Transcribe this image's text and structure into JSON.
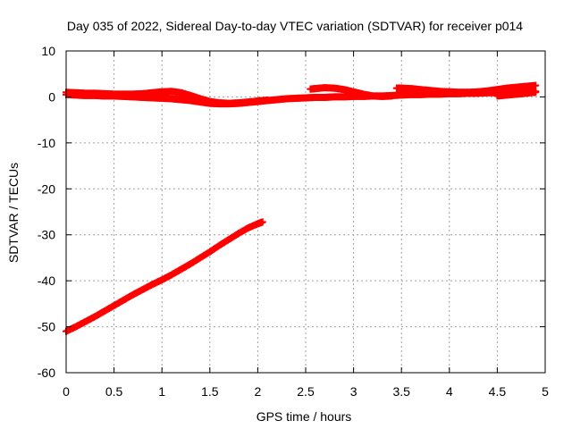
{
  "chart_data": {
    "type": "scatter",
    "title": "Day 035 of 2022, Sidereal Day-to-day VTEC variation (SDTVAR) for receiver p014",
    "xlabel": "GPS time / hours",
    "ylabel": "SDTVAR / TECUs",
    "xlim": [
      0,
      5
    ],
    "ylim": [
      -60,
      10
    ],
    "xticks": [
      0,
      0.5,
      1,
      1.5,
      2,
      2.5,
      3,
      3.5,
      4,
      4.5,
      5
    ],
    "xtick_labels": [
      "0",
      "0.5",
      "1",
      "1.5",
      "2",
      "2.5",
      "3",
      "3.5",
      "4",
      "4.5",
      "5"
    ],
    "yticks": [
      10,
      0,
      -10,
      -20,
      -30,
      -40,
      -50,
      -60
    ],
    "ytick_labels": [
      "10",
      "0",
      "-10",
      "-20",
      "-30",
      "-40",
      "-50",
      "-60"
    ],
    "grid": true,
    "marker": "plus",
    "color": "#ff0000",
    "series": [
      {
        "x": [
          0.0,
          0.1,
          0.2,
          0.3,
          0.4,
          0.5,
          0.6,
          0.7,
          0.8,
          0.9,
          1.0,
          1.1,
          1.2,
          1.3,
          1.4,
          1.5,
          1.6,
          1.7,
          1.8,
          1.9,
          2.0,
          2.1,
          2.2,
          2.3,
          2.4,
          2.5,
          2.6,
          2.7,
          2.8,
          2.9,
          3.0,
          3.1,
          3.2,
          3.3,
          3.4,
          3.5,
          3.6,
          3.7,
          3.8,
          3.9,
          4.0,
          4.1,
          4.2,
          4.3,
          4.4,
          4.5,
          4.6,
          4.7,
          4.8,
          4.9
        ],
        "y": [
          0.5,
          0.4,
          0.3,
          0.3,
          0.2,
          0.2,
          0.1,
          0.0,
          -0.1,
          -0.2,
          -0.3,
          -0.4,
          -0.6,
          -0.8,
          -1.1,
          -1.4,
          -1.5,
          -1.5,
          -1.4,
          -1.2,
          -1.0,
          -0.8,
          -0.6,
          -0.4,
          -0.3,
          -0.2,
          -0.1,
          -0.1,
          0.0,
          0.0,
          0.1,
          0.1,
          0.2,
          0.2,
          0.3,
          0.4,
          0.5,
          0.5,
          0.6,
          0.6,
          0.7,
          0.7,
          0.8,
          0.8,
          0.9,
          0.9,
          1.0,
          1.0,
          1.1,
          1.2
        ]
      },
      {
        "x": [
          0.0,
          0.1,
          0.2,
          0.3,
          0.4,
          0.5,
          0.6,
          0.7,
          0.8,
          0.9,
          1.0,
          1.1,
          1.2,
          1.3,
          1.4,
          1.5,
          1.6,
          1.7,
          1.8,
          1.9,
          2.0,
          2.1
        ],
        "y": [
          1.0,
          0.9,
          0.8,
          0.8,
          0.7,
          0.6,
          0.6,
          0.6,
          0.7,
          0.9,
          1.1,
          1.2,
          0.9,
          0.3,
          -0.4,
          -1.0,
          -1.3,
          -1.4,
          -1.3,
          -1.1,
          -0.9,
          -0.7
        ]
      },
      {
        "x": [
          2.55,
          2.6,
          2.7,
          2.8,
          2.9,
          3.0,
          3.1,
          3.2,
          3.3,
          3.4
        ],
        "y": [
          1.7,
          1.8,
          2.0,
          1.9,
          1.6,
          1.1,
          0.6,
          0.2,
          0.1,
          0.2
        ]
      },
      {
        "x": [
          3.45,
          3.5,
          3.6,
          3.7,
          3.8,
          3.9,
          4.0,
          4.1,
          4.2,
          4.3,
          4.4,
          4.5,
          4.6,
          4.7,
          4.8,
          4.9
        ],
        "y": [
          1.9,
          1.9,
          1.8,
          1.6,
          1.4,
          1.2,
          1.1,
          1.0,
          1.0,
          1.1,
          1.3,
          1.6,
          1.9,
          2.1,
          2.3,
          2.5
        ]
      },
      {
        "x": [
          4.5,
          4.6,
          4.7,
          4.8,
          4.9
        ],
        "y": [
          0.2,
          0.4,
          0.6,
          0.8,
          1.0
        ]
      },
      {
        "x": [
          0.0,
          0.1,
          0.2,
          0.3,
          0.4,
          0.5,
          0.6,
          0.7,
          0.8,
          0.9,
          1.0,
          1.1,
          1.2,
          1.3,
          1.4,
          1.5,
          1.6,
          1.7,
          1.8,
          1.9,
          2.0,
          2.05
        ],
        "y": [
          -51.0,
          -50.0,
          -48.9,
          -47.8,
          -46.6,
          -45.4,
          -44.2,
          -43.0,
          -41.9,
          -40.8,
          -39.8,
          -38.7,
          -37.5,
          -36.3,
          -35.0,
          -33.7,
          -32.3,
          -31.0,
          -29.7,
          -28.5,
          -27.6,
          -27.2
        ]
      }
    ]
  }
}
